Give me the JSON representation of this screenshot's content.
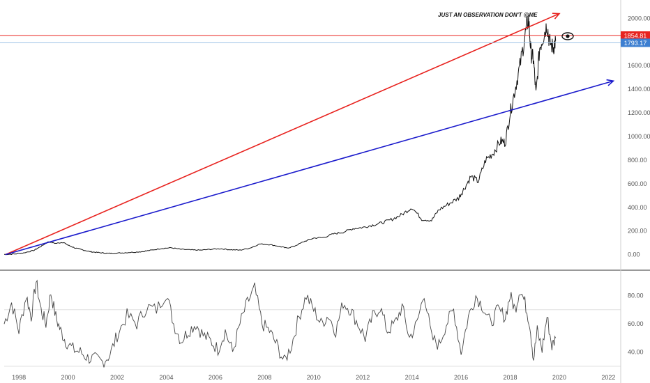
{
  "chart_data": {
    "type": "line",
    "annotation": "JUST AN OBSERVATION DON'T @ME",
    "colors": {
      "price": "#111111",
      "rsi": "#444444",
      "red_line": "#e8231f",
      "blue_line": "#1a1acc",
      "hline_red": "#e8231f",
      "hline_blue": "#9ec3e6",
      "axis_text": "#555555",
      "grid": "#e0e0e0"
    },
    "price_panel": {
      "ylim": [
        -120,
        2120
      ],
      "y_ticks": [
        "0.00",
        "200.00",
        "400.00",
        "600.00",
        "800.00",
        "1000.00",
        "1200.00",
        "1400.00",
        "1600.00",
        "1800.00",
        "2000.00"
      ],
      "price_tags": [
        {
          "label": "1854.81",
          "value": 1854.81,
          "color": "#e8231f"
        },
        {
          "label": "1793.17",
          "value": 1793.17,
          "color": "#3d7fd1"
        }
      ],
      "series": {
        "x": [
          1997.4,
          1997.8,
          1998.2,
          1998.6,
          1998.9,
          1999.2,
          1999.5,
          1999.8,
          2000.0,
          2000.3,
          2000.6,
          2000.9,
          2001.2,
          2001.5,
          2001.8,
          2002.2,
          2002.6,
          2003.0,
          2003.4,
          2003.8,
          2004.2,
          2004.6,
          2005.0,
          2005.4,
          2005.8,
          2006.2,
          2006.6,
          2007.0,
          2007.4,
          2007.8,
          2008.2,
          2008.6,
          2008.9,
          2009.2,
          2009.6,
          2010.0,
          2010.4,
          2010.8,
          2011.2,
          2011.6,
          2012.0,
          2012.4,
          2012.8,
          2013.2,
          2013.6,
          2014.0,
          2014.4,
          2014.8,
          2015.1,
          2015.5,
          2015.9,
          2016.1,
          2016.4,
          2016.7,
          2017.0,
          2017.3,
          2017.6,
          2017.8,
          2018.0,
          2018.2,
          2018.4,
          2018.6,
          2018.75,
          2018.85,
          2018.95,
          2019.05,
          2019.2,
          2019.35,
          2019.5,
          2019.6,
          2019.75,
          2019.85
        ],
        "y": [
          2,
          5,
          15,
          35,
          70,
          110,
          95,
          105,
          80,
          55,
          40,
          25,
          18,
          12,
          10,
          15,
          20,
          25,
          38,
          52,
          58,
          45,
          40,
          38,
          45,
          50,
          42,
          38,
          55,
          90,
          85,
          70,
          55,
          70,
          110,
          140,
          145,
          175,
          190,
          220,
          230,
          250,
          270,
          300,
          340,
          400,
          300,
          290,
          380,
          430,
          480,
          550,
          660,
          620,
          800,
          860,
          960,
          950,
          1200,
          1400,
          1600,
          1850,
          2000,
          1700,
          1650,
          1350,
          1750,
          1850,
          1950,
          1800,
          1750,
          1810
        ]
      }
    },
    "rsi_panel": {
      "ylim": [
        28,
        96
      ],
      "y_ticks": [
        "40.00",
        "60.00",
        "80.00"
      ],
      "series": {
        "x": [
          1997.4,
          1997.7,
          1998.0,
          1998.3,
          1998.5,
          1998.7,
          1998.9,
          1999.1,
          1999.3,
          1999.5,
          1999.7,
          1999.9,
          2000.2,
          2000.5,
          2000.8,
          2001.1,
          2001.4,
          2001.7,
          2002.0,
          2002.4,
          2002.8,
          2003.2,
          2003.6,
          2004.0,
          2004.3,
          2004.6,
          2004.9,
          2005.2,
          2005.5,
          2005.8,
          2006.1,
          2006.4,
          2006.7,
          2007.0,
          2007.3,
          2007.6,
          2007.9,
          2008.2,
          2008.5,
          2008.8,
          2009.1,
          2009.4,
          2009.7,
          2010.0,
          2010.3,
          2010.6,
          2010.9,
          2011.2,
          2011.5,
          2011.8,
          2012.1,
          2012.4,
          2012.7,
          2013.0,
          2013.3,
          2013.6,
          2013.9,
          2014.2,
          2014.5,
          2014.8,
          2015.1,
          2015.4,
          2015.7,
          2016.0,
          2016.3,
          2016.6,
          2016.9,
          2017.2,
          2017.5,
          2017.8,
          2018.0,
          2018.2,
          2018.4,
          2018.6,
          2018.8,
          2018.95,
          2019.1,
          2019.3,
          2019.5,
          2019.7,
          2019.85
        ],
        "y": [
          60,
          75,
          55,
          80,
          65,
          90,
          70,
          60,
          82,
          65,
          55,
          48,
          42,
          40,
          36,
          35,
          33,
          38,
          52,
          66,
          60,
          72,
          70,
          82,
          60,
          48,
          55,
          60,
          52,
          48,
          42,
          55,
          40,
          60,
          75,
          85,
          60,
          55,
          45,
          33,
          45,
          65,
          80,
          70,
          60,
          66,
          55,
          75,
          70,
          60,
          50,
          65,
          72,
          55,
          60,
          72,
          50,
          60,
          82,
          50,
          45,
          60,
          70,
          40,
          65,
          80,
          72,
          60,
          70,
          65,
          80,
          70,
          85,
          75,
          60,
          35,
          55,
          42,
          65,
          44,
          50
        ]
      }
    },
    "x_axis": {
      "xlim": [
        1997.4,
        2022.5
      ],
      "ticks": [
        "1998",
        "2000",
        "2002",
        "2004",
        "2006",
        "2008",
        "2010",
        "2012",
        "2014",
        "2016",
        "2018",
        "2020",
        "2022"
      ]
    },
    "trend_lines": [
      {
        "name": "",
        "color": "#e8231f",
        "from": [
          1997.45,
          0
        ],
        "to": [
          2020.0,
          2040
        ]
      },
      {
        "name": "",
        "color": "#1a1acc",
        "from": [
          1997.45,
          0
        ],
        "to": [
          2022.2,
          1470
        ]
      }
    ]
  }
}
